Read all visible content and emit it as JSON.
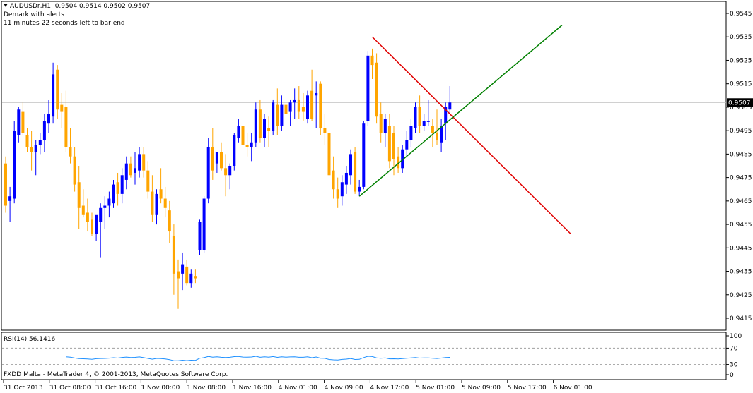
{
  "header": {
    "symbol": "AUDUSDr,H1",
    "ohlc": "0.9504 0.9514 0.9502 0.9507",
    "indicator": "Demark with alerts",
    "timer": "11 minutes 22 seconds left to bar end"
  },
  "rsi": {
    "label": "RSI(14) 56.1416",
    "levels": [
      "100",
      "70",
      "30",
      "0"
    ]
  },
  "footer": "FXDD Malta - MetaTrader 4, © 2001-2013, MetaQuotes Software Corp.",
  "price_axis": [
    "0.9545",
    "0.9535",
    "0.9525",
    "0.9515",
    "0.9505",
    "0.9495",
    "0.9485",
    "0.9475",
    "0.9465",
    "0.9455",
    "0.9445",
    "0.9435",
    "0.9425",
    "0.9415"
  ],
  "current_price": "0.9507",
  "time_axis": [
    "31 Oct 2013",
    "31 Oct 08:00",
    "31 Oct 16:00",
    "1 Nov 00:00",
    "1 Nov 08:00",
    "1 Nov 16:00",
    "4 Nov 01:00",
    "4 Nov 09:00",
    "4 Nov 17:00",
    "5 Nov 01:00",
    "5 Nov 09:00",
    "5 Nov 17:00",
    "6 Nov 01:00"
  ],
  "colors": {
    "bull": "#0000ff",
    "bear": "#ffa500",
    "resistance": "#e00000",
    "support": "#008000",
    "rsi": "#1e90ff",
    "grid": "#c0c0c0"
  },
  "chart_data": {
    "type": "candlestick",
    "symbol": "AUDUSDr",
    "timeframe": "H1",
    "ylim": [
      0.9411,
      0.9551
    ],
    "candles": [
      {
        "o": 0.9481,
        "h": 0.9484,
        "l": 0.946,
        "c": 0.9463
      },
      {
        "o": 0.9465,
        "h": 0.9471,
        "l": 0.9456,
        "c": 0.9467
      },
      {
        "o": 0.9466,
        "h": 0.9499,
        "l": 0.9464,
        "c": 0.9495
      },
      {
        "o": 0.9493,
        "h": 0.9505,
        "l": 0.949,
        "c": 0.9504
      },
      {
        "o": 0.9503,
        "h": 0.9507,
        "l": 0.9493,
        "c": 0.9494
      },
      {
        "o": 0.9493,
        "h": 0.9496,
        "l": 0.9486,
        "c": 0.9488
      },
      {
        "o": 0.9488,
        "h": 0.9495,
        "l": 0.9478,
        "c": 0.9486
      },
      {
        "o": 0.9486,
        "h": 0.9491,
        "l": 0.9476,
        "c": 0.9489
      },
      {
        "o": 0.9489,
        "h": 0.9494,
        "l": 0.9485,
        "c": 0.9491
      },
      {
        "o": 0.9491,
        "h": 0.9502,
        "l": 0.9486,
        "c": 0.9499
      },
      {
        "o": 0.9498,
        "h": 0.9508,
        "l": 0.9494,
        "c": 0.9502
      },
      {
        "o": 0.9501,
        "h": 0.9524,
        "l": 0.9498,
        "c": 0.9519
      },
      {
        "o": 0.9521,
        "h": 0.9523,
        "l": 0.95,
        "c": 0.9504
      },
      {
        "o": 0.9506,
        "h": 0.9511,
        "l": 0.9496,
        "c": 0.9503
      },
      {
        "o": 0.9505,
        "h": 0.9512,
        "l": 0.9486,
        "c": 0.9488
      },
      {
        "o": 0.9488,
        "h": 0.9496,
        "l": 0.9481,
        "c": 0.9484
      },
      {
        "o": 0.9484,
        "h": 0.9488,
        "l": 0.9469,
        "c": 0.9472
      },
      {
        "o": 0.9473,
        "h": 0.948,
        "l": 0.9453,
        "c": 0.9462
      },
      {
        "o": 0.9463,
        "h": 0.947,
        "l": 0.9458,
        "c": 0.9459
      },
      {
        "o": 0.946,
        "h": 0.9466,
        "l": 0.9452,
        "c": 0.9456
      },
      {
        "o": 0.9457,
        "h": 0.946,
        "l": 0.945,
        "c": 0.9451
      },
      {
        "o": 0.9451,
        "h": 0.9458,
        "l": 0.9448,
        "c": 0.9459
      },
      {
        "o": 0.9456,
        "h": 0.9464,
        "l": 0.9441,
        "c": 0.9462
      },
      {
        "o": 0.9462,
        "h": 0.9467,
        "l": 0.9453,
        "c": 0.9463
      },
      {
        "o": 0.9463,
        "h": 0.9469,
        "l": 0.9458,
        "c": 0.9466
      },
      {
        "o": 0.9464,
        "h": 0.9474,
        "l": 0.9462,
        "c": 0.9472
      },
      {
        "o": 0.9473,
        "h": 0.9477,
        "l": 0.9463,
        "c": 0.9468
      },
      {
        "o": 0.9468,
        "h": 0.9479,
        "l": 0.9464,
        "c": 0.9476
      },
      {
        "o": 0.9474,
        "h": 0.9484,
        "l": 0.947,
        "c": 0.9481
      },
      {
        "o": 0.9481,
        "h": 0.9484,
        "l": 0.9475,
        "c": 0.9476
      },
      {
        "o": 0.9477,
        "h": 0.9486,
        "l": 0.9472,
        "c": 0.9479
      },
      {
        "o": 0.9478,
        "h": 0.9488,
        "l": 0.9475,
        "c": 0.9485
      },
      {
        "o": 0.9485,
        "h": 0.9488,
        "l": 0.9475,
        "c": 0.9478
      },
      {
        "o": 0.9478,
        "h": 0.9482,
        "l": 0.9466,
        "c": 0.9469
      },
      {
        "o": 0.9469,
        "h": 0.9476,
        "l": 0.9456,
        "c": 0.9459
      },
      {
        "o": 0.9459,
        "h": 0.947,
        "l": 0.9455,
        "c": 0.9468
      },
      {
        "o": 0.947,
        "h": 0.9479,
        "l": 0.9464,
        "c": 0.9466
      },
      {
        "o": 0.9466,
        "h": 0.9471,
        "l": 0.9458,
        "c": 0.9462
      },
      {
        "o": 0.9461,
        "h": 0.9465,
        "l": 0.9447,
        "c": 0.9452
      },
      {
        "o": 0.945,
        "h": 0.9455,
        "l": 0.9425,
        "c": 0.9434
      },
      {
        "o": 0.9435,
        "h": 0.944,
        "l": 0.9419,
        "c": 0.9432
      },
      {
        "o": 0.9434,
        "h": 0.9443,
        "l": 0.9427,
        "c": 0.9438
      },
      {
        "o": 0.9437,
        "h": 0.944,
        "l": 0.9429,
        "c": 0.943
      },
      {
        "o": 0.943,
        "h": 0.9436,
        "l": 0.9428,
        "c": 0.9434
      },
      {
        "o": 0.9433,
        "h": 0.9436,
        "l": 0.943,
        "c": 0.9432
      },
      {
        "o": 0.9444,
        "h": 0.9457,
        "l": 0.9442,
        "c": 0.9456
      },
      {
        "o": 0.9444,
        "h": 0.9467,
        "l": 0.9443,
        "c": 0.9466
      },
      {
        "o": 0.9466,
        "h": 0.9492,
        "l": 0.9464,
        "c": 0.9488
      },
      {
        "o": 0.9488,
        "h": 0.9496,
        "l": 0.9474,
        "c": 0.9478
      },
      {
        "o": 0.9481,
        "h": 0.9486,
        "l": 0.9477,
        "c": 0.9486
      },
      {
        "o": 0.9486,
        "h": 0.949,
        "l": 0.9478,
        "c": 0.9479
      },
      {
        "o": 0.9479,
        "h": 0.9485,
        "l": 0.9467,
        "c": 0.9476
      },
      {
        "o": 0.9476,
        "h": 0.9481,
        "l": 0.947,
        "c": 0.948
      },
      {
        "o": 0.948,
        "h": 0.9494,
        "l": 0.9478,
        "c": 0.9493
      },
      {
        "o": 0.9492,
        "h": 0.95,
        "l": 0.949,
        "c": 0.9497
      },
      {
        "o": 0.9497,
        "h": 0.9499,
        "l": 0.9484,
        "c": 0.9489
      },
      {
        "o": 0.9489,
        "h": 0.9494,
        "l": 0.9484,
        "c": 0.9488
      },
      {
        "o": 0.9488,
        "h": 0.9494,
        "l": 0.9482,
        "c": 0.949
      },
      {
        "o": 0.949,
        "h": 0.9507,
        "l": 0.9488,
        "c": 0.9504
      },
      {
        "o": 0.9504,
        "h": 0.9508,
        "l": 0.949,
        "c": 0.9492
      },
      {
        "o": 0.9492,
        "h": 0.9502,
        "l": 0.9488,
        "c": 0.95
      },
      {
        "o": 0.9496,
        "h": 0.9501,
        "l": 0.9488,
        "c": 0.9495
      },
      {
        "o": 0.9495,
        "h": 0.9508,
        "l": 0.9493,
        "c": 0.9507
      },
      {
        "o": 0.9506,
        "h": 0.9513,
        "l": 0.9493,
        "c": 0.9497
      },
      {
        "o": 0.9497,
        "h": 0.951,
        "l": 0.9495,
        "c": 0.9506
      },
      {
        "o": 0.9506,
        "h": 0.9512,
        "l": 0.9499,
        "c": 0.9502
      },
      {
        "o": 0.9503,
        "h": 0.9508,
        "l": 0.9497,
        "c": 0.9507
      },
      {
        "o": 0.9507,
        "h": 0.9513,
        "l": 0.95,
        "c": 0.9508
      },
      {
        "o": 0.9508,
        "h": 0.9514,
        "l": 0.95,
        "c": 0.9503
      },
      {
        "o": 0.9505,
        "h": 0.9511,
        "l": 0.9499,
        "c": 0.9503
      },
      {
        "o": 0.95,
        "h": 0.9512,
        "l": 0.9498,
        "c": 0.951
      },
      {
        "o": 0.9512,
        "h": 0.9521,
        "l": 0.9499,
        "c": 0.95
      },
      {
        "o": 0.951,
        "h": 0.9516,
        "l": 0.9496,
        "c": 0.9511
      },
      {
        "o": 0.9515,
        "h": 0.9516,
        "l": 0.9493,
        "c": 0.9496
      },
      {
        "o": 0.9496,
        "h": 0.9502,
        "l": 0.9489,
        "c": 0.9494
      },
      {
        "o": 0.9494,
        "h": 0.9497,
        "l": 0.9475,
        "c": 0.9476
      },
      {
        "o": 0.9478,
        "h": 0.9484,
        "l": 0.9466,
        "c": 0.947
      },
      {
        "o": 0.947,
        "h": 0.9475,
        "l": 0.9462,
        "c": 0.9466
      },
      {
        "o": 0.9467,
        "h": 0.9476,
        "l": 0.9463,
        "c": 0.9473
      },
      {
        "o": 0.9472,
        "h": 0.948,
        "l": 0.9468,
        "c": 0.9477
      },
      {
        "o": 0.9476,
        "h": 0.9487,
        "l": 0.9472,
        "c": 0.9485
      },
      {
        "o": 0.9486,
        "h": 0.9488,
        "l": 0.9468,
        "c": 0.9469
      },
      {
        "o": 0.9469,
        "h": 0.9474,
        "l": 0.9467,
        "c": 0.9471
      },
      {
        "o": 0.9471,
        "h": 0.9499,
        "l": 0.947,
        "c": 0.9498
      },
      {
        "o": 0.9499,
        "h": 0.9529,
        "l": 0.9497,
        "c": 0.9527
      },
      {
        "o": 0.9527,
        "h": 0.953,
        "l": 0.9517,
        "c": 0.9523
      },
      {
        "o": 0.9524,
        "h": 0.9528,
        "l": 0.9498,
        "c": 0.9501
      },
      {
        "o": 0.9502,
        "h": 0.9507,
        "l": 0.949,
        "c": 0.9494
      },
      {
        "o": 0.9494,
        "h": 0.9502,
        "l": 0.9488,
        "c": 0.95
      },
      {
        "o": 0.9497,
        "h": 0.9502,
        "l": 0.9479,
        "c": 0.9482
      },
      {
        "o": 0.9494,
        "h": 0.9497,
        "l": 0.9476,
        "c": 0.9483
      },
      {
        "o": 0.9484,
        "h": 0.9488,
        "l": 0.9477,
        "c": 0.9479
      },
      {
        "o": 0.9479,
        "h": 0.9489,
        "l": 0.9477,
        "c": 0.9487
      },
      {
        "o": 0.9487,
        "h": 0.9495,
        "l": 0.9484,
        "c": 0.9491
      },
      {
        "o": 0.9491,
        "h": 0.95,
        "l": 0.9488,
        "c": 0.9497
      },
      {
        "o": 0.9496,
        "h": 0.9507,
        "l": 0.9494,
        "c": 0.9505
      },
      {
        "o": 0.9505,
        "h": 0.951,
        "l": 0.9494,
        "c": 0.9497
      },
      {
        "o": 0.9497,
        "h": 0.9502,
        "l": 0.9495,
        "c": 0.9499
      },
      {
        "o": 0.9499,
        "h": 0.9508,
        "l": 0.9497,
        "c": 0.9499
      },
      {
        "o": 0.9497,
        "h": 0.95,
        "l": 0.9488,
        "c": 0.9494
      },
      {
        "o": 0.9494,
        "h": 0.9504,
        "l": 0.9489,
        "c": 0.9491
      },
      {
        "o": 0.949,
        "h": 0.95,
        "l": 0.9486,
        "c": 0.9497
      },
      {
        "o": 0.9498,
        "h": 0.9507,
        "l": 0.9491,
        "c": 0.9505
      },
      {
        "o": 0.9504,
        "h": 0.9514,
        "l": 0.9502,
        "c": 0.9507
      }
    ],
    "trendlines": [
      {
        "name": "resistance",
        "color": "#e00000",
        "from": {
          "bar": 85,
          "price": 0.9535
        },
        "to": {
          "bar": 131,
          "price": 0.9451
        }
      },
      {
        "name": "support",
        "color": "#008000",
        "from": {
          "bar": 82,
          "price": 0.9467
        },
        "to": {
          "bar": 129,
          "price": 0.954
        }
      }
    ],
    "rsi_levels": [
      70,
      30
    ]
  }
}
